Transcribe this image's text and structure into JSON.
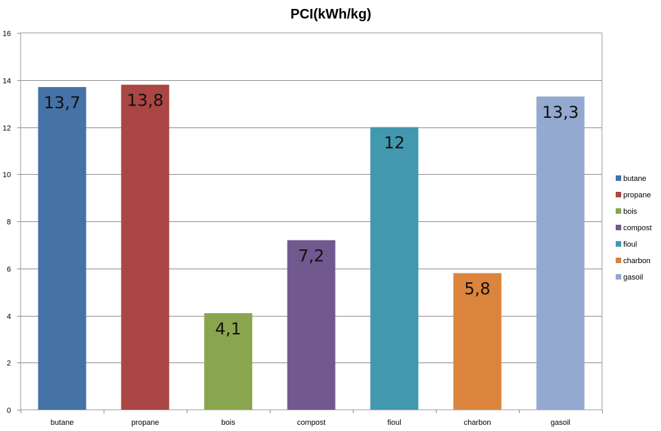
{
  "chart_data": {
    "type": "bar",
    "title": "PCI(kWh/kg)",
    "xlabel": "",
    "ylabel": "",
    "ylim": [
      0,
      16
    ],
    "yticks": [
      0,
      2,
      4,
      6,
      8,
      10,
      12,
      14,
      16
    ],
    "grid": true,
    "legend_position": "right",
    "categories": [
      "butane",
      "propane",
      "bois",
      "compost",
      "fioul",
      "charbon",
      "gasoil"
    ],
    "values": [
      13.7,
      13.8,
      4.1,
      7.2,
      12,
      5.8,
      13.3
    ],
    "data_labels": [
      "13,7",
      "13,8",
      "4,1",
      "7,2",
      "12",
      "5,8",
      "13,3"
    ],
    "colors": [
      "#4572A7",
      "#AA4643",
      "#89A54E",
      "#71588F",
      "#4198AF",
      "#DB843D",
      "#93A9CF"
    ]
  }
}
